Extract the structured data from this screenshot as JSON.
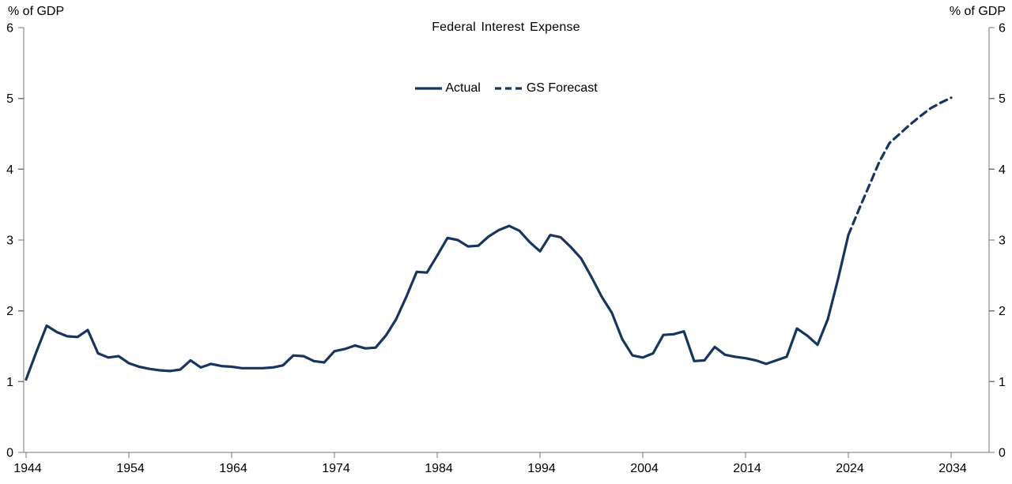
{
  "colors": {
    "line": "#17365d",
    "axis": "#757575",
    "text": "#000000",
    "background": "#ffffff"
  },
  "chart_data": {
    "type": "line",
    "title": "Federal Interest Expense",
    "ylabel_left": "% of GDP",
    "ylabel_right": "% of GDP",
    "xlabel": "",
    "ylim": [
      0,
      6
    ],
    "xlim": [
      1944,
      2037.5
    ],
    "y_ticks": [
      0,
      1,
      2,
      3,
      4,
      5,
      6
    ],
    "x_ticks": [
      1944,
      1954,
      1964,
      1974,
      1984,
      1994,
      2004,
      2014,
      2024,
      2034
    ],
    "grid": false,
    "legend_position": "top-center",
    "series": [
      {
        "name": "Actual",
        "style": "solid",
        "x": [
          1944,
          1945,
          1946,
          1947,
          1948,
          1949,
          1950,
          1951,
          1952,
          1953,
          1954,
          1955,
          1956,
          1957,
          1958,
          1959,
          1960,
          1961,
          1962,
          1963,
          1964,
          1965,
          1966,
          1967,
          1968,
          1969,
          1970,
          1971,
          1972,
          1973,
          1974,
          1975,
          1976,
          1977,
          1978,
          1979,
          1980,
          1981,
          1982,
          1983,
          1984,
          1985,
          1986,
          1987,
          1988,
          1989,
          1990,
          1991,
          1992,
          1993,
          1994,
          1995,
          1996,
          1997,
          1998,
          1999,
          2000,
          2001,
          2002,
          2003,
          2004,
          2005,
          2006,
          2007,
          2008,
          2009,
          2010,
          2011,
          2012,
          2013,
          2014,
          2015,
          2016,
          2017,
          2018,
          2019,
          2020,
          2021,
          2022,
          2023,
          2024
        ],
        "values": [
          1.03,
          1.42,
          1.79,
          1.7,
          1.64,
          1.63,
          1.73,
          1.4,
          1.34,
          1.36,
          1.26,
          1.21,
          1.18,
          1.16,
          1.15,
          1.17,
          1.3,
          1.2,
          1.25,
          1.22,
          1.21,
          1.19,
          1.19,
          1.19,
          1.2,
          1.23,
          1.37,
          1.36,
          1.29,
          1.27,
          1.43,
          1.46,
          1.51,
          1.47,
          1.48,
          1.65,
          1.88,
          2.2,
          2.55,
          2.54,
          2.78,
          3.03,
          3.0,
          2.91,
          2.92,
          3.05,
          3.14,
          3.2,
          3.13,
          2.97,
          2.84,
          3.07,
          3.04,
          2.9,
          2.74,
          2.48,
          2.2,
          1.97,
          1.6,
          1.37,
          1.34,
          1.4,
          1.66,
          1.67,
          1.71,
          1.29,
          1.3,
          1.49,
          1.38,
          1.35,
          1.33,
          1.3,
          1.25,
          1.3,
          1.35,
          1.75,
          1.65,
          1.52,
          1.88,
          2.45,
          3.07
        ]
      },
      {
        "name": "GS Forecast",
        "style": "dashed",
        "x": [
          2024,
          2025,
          2026,
          2027,
          2028,
          2029,
          2030,
          2031,
          2032,
          2033,
          2034
        ],
        "values": [
          3.07,
          3.42,
          3.76,
          4.1,
          4.37,
          4.5,
          4.63,
          4.75,
          4.86,
          4.94,
          5.01
        ]
      }
    ]
  }
}
